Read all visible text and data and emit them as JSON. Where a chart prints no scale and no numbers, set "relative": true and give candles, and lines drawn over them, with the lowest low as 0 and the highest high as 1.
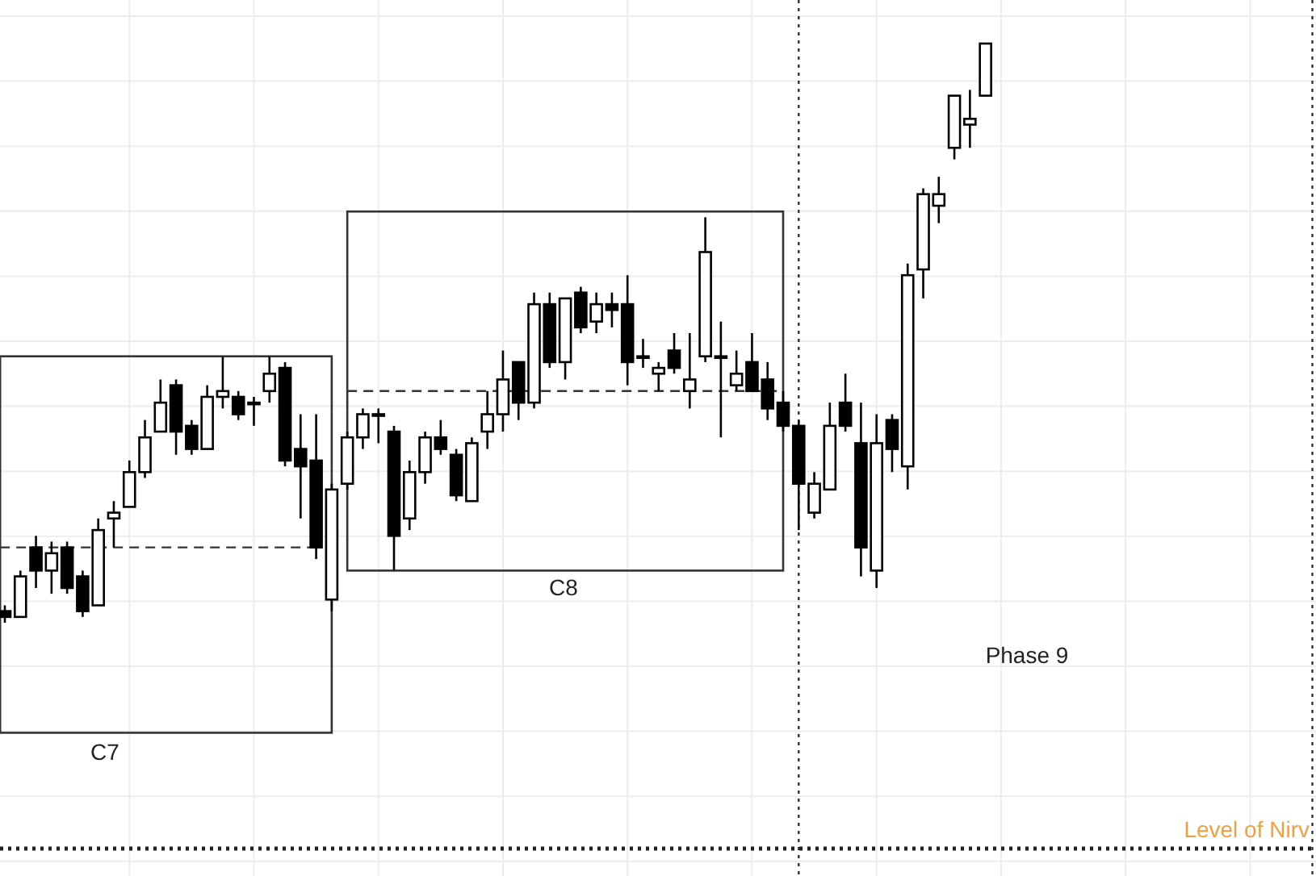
{
  "chart_data": {
    "type": "candlestick",
    "relative": true,
    "grid": true,
    "categories": [
      null,
      null,
      null,
      null,
      null,
      null,
      null,
      null,
      null,
      null,
      null,
      null,
      null,
      null,
      null,
      null,
      null,
      null,
      null,
      null,
      null,
      null,
      null,
      null,
      null,
      null,
      null,
      null,
      null,
      null,
      null,
      null,
      null,
      null,
      null,
      null,
      null,
      null,
      null,
      null,
      null,
      null,
      null,
      null,
      null,
      null,
      null,
      null,
      null,
      null,
      null,
      null,
      null,
      null,
      null,
      null,
      null,
      null,
      null,
      null,
      null,
      null,
      null,
      null,
      null,
      null,
      null,
      null,
      null,
      null,
      null,
      null,
      null,
      null,
      null,
      null,
      null,
      null,
      null,
      null,
      null,
      null,
      null,
      null,
      null
    ],
    "ohlc": [
      [
        0.02,
        0.03,
        0,
        0.01
      ],
      [
        0.01,
        0.09,
        0.01,
        0.08
      ],
      [
        0.13,
        0.15,
        0.06,
        0.09
      ],
      [
        0.09,
        0.14,
        0.05,
        0.12
      ],
      [
        0.13,
        0.14,
        0.05,
        0.06
      ],
      [
        0.08,
        0.09,
        0.01,
        0.02
      ],
      [
        0.03,
        0.18,
        0.03,
        0.16
      ],
      [
        0.18,
        0.21,
        0.13,
        0.19
      ],
      [
        0.2,
        0.28,
        0.2,
        0.26
      ],
      [
        0.26,
        0.35,
        0.25,
        0.32
      ],
      [
        0.33,
        0.42,
        0.33,
        0.38
      ],
      [
        0.41,
        0.42,
        0.29,
        0.33
      ],
      [
        0.34,
        0.35,
        0.29,
        0.3
      ],
      [
        0.3,
        0.41,
        0.3,
        0.39
      ],
      [
        0.39,
        0.46,
        0.37,
        0.4
      ],
      [
        0.39,
        0.4,
        0.35,
        0.36
      ],
      [
        0.38,
        0.39,
        0.34,
        0.38
      ],
      [
        0.4,
        0.46,
        0.38,
        0.43
      ],
      [
        0.44,
        0.45,
        0.27,
        0.28
      ],
      [
        0.3,
        0.36,
        0.18,
        0.27
      ],
      [
        0.28,
        0.36,
        0.11,
        0.13
      ],
      [
        0.04,
        0.24,
        0.02,
        0.23
      ],
      [
        0.24,
        0.33,
        0.23,
        0.32
      ],
      [
        0.32,
        0.37,
        0.3,
        0.36
      ],
      [
        0.36,
        0.37,
        0.31,
        0.36
      ],
      [
        0.33,
        0.34,
        0.09,
        0.15
      ],
      [
        0.18,
        0.28,
        0.16,
        0.26
      ],
      [
        0.26,
        0.33,
        0.24,
        0.32
      ],
      [
        0.32,
        0.35,
        0.29,
        0.3
      ],
      [
        0.29,
        0.3,
        0.21,
        0.22
      ],
      [
        0.21,
        0.32,
        0.21,
        0.31
      ],
      [
        0.33,
        0.4,
        0.3,
        0.36
      ],
      [
        0.36,
        0.47,
        0.33,
        0.42
      ],
      [
        0.45,
        0.45,
        0.35,
        0.38
      ],
      [
        0.38,
        0.57,
        0.37,
        0.55
      ],
      [
        0.55,
        0.57,
        0.44,
        0.45
      ],
      [
        0.45,
        0.56,
        0.42,
        0.56
      ],
      [
        0.57,
        0.58,
        0.5,
        0.51
      ],
      [
        0.52,
        0.57,
        0.5,
        0.55
      ],
      [
        0.55,
        0.57,
        0.51,
        0.54
      ],
      [
        0.55,
        0.6,
        0.41,
        0.45
      ],
      [
        0.46,
        0.49,
        0.44,
        0.46
      ],
      [
        0.43,
        0.45,
        0.4,
        0.44
      ],
      [
        0.47,
        0.5,
        0.43,
        0.44
      ],
      [
        0.4,
        0.5,
        0.37,
        0.42
      ],
      [
        0.46,
        0.7,
        0.45,
        0.64
      ],
      [
        0.46,
        0.52,
        0.32,
        0.46
      ],
      [
        0.41,
        0.47,
        0.4,
        0.43
      ],
      [
        0.45,
        0.5,
        0.4,
        0.4
      ],
      [
        0.42,
        0.45,
        0.35,
        0.37
      ],
      [
        0.38,
        0.4,
        0.33,
        0.34
      ],
      [
        0.34,
        0.35,
        0.16,
        0.24
      ],
      [
        0.19,
        0.26,
        0.18,
        0.24
      ],
      [
        0.23,
        0.38,
        0.23,
        0.34
      ],
      [
        0.38,
        0.43,
        0.33,
        0.34
      ],
      [
        0.31,
        0.38,
        0.08,
        0.13
      ],
      [
        0.09,
        0.36,
        0.06,
        0.31
      ],
      [
        0.35,
        0.36,
        0.26,
        0.3
      ],
      [
        0.27,
        0.62,
        0.23,
        0.6
      ],
      [
        0.61,
        0.75,
        0.56,
        0.74
      ],
      [
        0.72,
        0.77,
        0.69,
        0.74
      ],
      [
        0.82,
        0.91,
        0.8,
        0.91
      ],
      [
        0.86,
        0.92,
        0.82,
        0.87
      ],
      [
        0.91,
        1.0,
        0.91,
        1.0
      ],
      null,
      null,
      null,
      null,
      null,
      null,
      null,
      null,
      null,
      null,
      null,
      null,
      null,
      null,
      null,
      null,
      null,
      null,
      null,
      null,
      null
    ],
    "ref_lines": [
      {
        "axis": "y",
        "value": 0.13,
        "color": "#333333",
        "line_style": "dashed"
      },
      {
        "axis": "y",
        "value": 0.4,
        "color": "#333333",
        "line_style": "dashed"
      },
      {
        "axis": "y",
        "value": -0.39,
        "label": "Level of Nirv",
        "color": "#222222",
        "line_style": "dotted"
      }
    ],
    "annotations": [
      "C7",
      "C8",
      "Phase 9"
    ]
  }
}
